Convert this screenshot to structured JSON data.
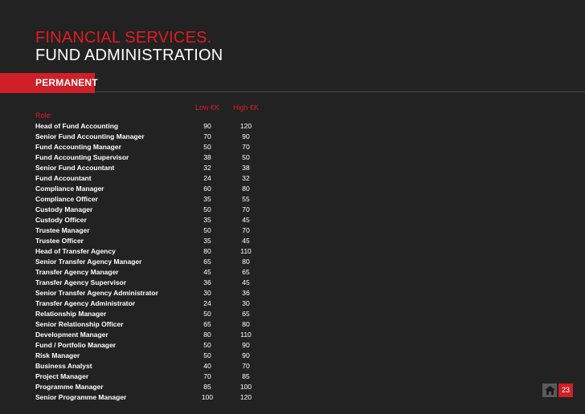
{
  "header": {
    "title_line1": "FINANCIAL SERVICES.",
    "title_line2": "FUND ADMINISTRATION",
    "section": "PERMANENT"
  },
  "table": {
    "columns": {
      "role": "Role:",
      "low": "Low €K",
      "high": "High €K"
    },
    "rows": [
      {
        "role": "Head of Fund Accounting",
        "low": "90",
        "high": "120"
      },
      {
        "role": "Senior Fund Accounting Manager",
        "low": "70",
        "high": "90"
      },
      {
        "role": "Fund Accounting Manager",
        "low": "50",
        "high": "70"
      },
      {
        "role": "Fund Accounting Supervisor",
        "low": "38",
        "high": "50"
      },
      {
        "role": "Senior Fund Accountant",
        "low": "32",
        "high": "38"
      },
      {
        "role": "Fund Accountant",
        "low": "24",
        "high": "32"
      },
      {
        "role": "Compliance Manager",
        "low": "60",
        "high": "80"
      },
      {
        "role": "Compliance Officer",
        "low": "35",
        "high": "55"
      },
      {
        "role": "Custody Manager",
        "low": "50",
        "high": "70"
      },
      {
        "role": "Custody Officer",
        "low": "35",
        "high": "45"
      },
      {
        "role": "Trustee Manager",
        "low": "50",
        "high": "70"
      },
      {
        "role": "Trustee Officer",
        "low": "35",
        "high": "45"
      },
      {
        "role": "Head of Transfer Agency",
        "low": "80",
        "high": "110"
      },
      {
        "role": "Senior Transfer Agency Manager",
        "low": "65",
        "high": "80"
      },
      {
        "role": "Transfer Agency Manager",
        "low": "45",
        "high": "65"
      },
      {
        "role": "Transfer Agency Supervisor",
        "low": "36",
        "high": "45"
      },
      {
        "role": "Senior Transfer Agency Administrator",
        "low": "30",
        "high": "36"
      },
      {
        "role": "Transfer Agency Administrator",
        "low": "24",
        "high": "30"
      },
      {
        "role": "Relationship Manager",
        "low": "50",
        "high": "65"
      },
      {
        "role": "Senior Relationship Officer",
        "low": "65",
        "high": "80"
      },
      {
        "role": "Development Manager",
        "low": "80",
        "high": "110"
      },
      {
        "role": "Fund / Portfolio Manager",
        "low": "50",
        "high": "90"
      },
      {
        "role": "Risk Manager",
        "low": "50",
        "high": "90"
      },
      {
        "role": "Business Analyst",
        "low": "40",
        "high": "70"
      },
      {
        "role": "Project Manager",
        "low": "70",
        "high": "85"
      },
      {
        "role": "Programme Manager",
        "low": "85",
        "high": "100"
      },
      {
        "role": "Senior Programme Manager",
        "low": "100",
        "high": "120"
      }
    ]
  },
  "footer": {
    "page_number": "23",
    "home_icon": "home-icon"
  },
  "colors": {
    "accent": "#e01b22",
    "background": "#222222",
    "bar": "#cf1f28"
  }
}
